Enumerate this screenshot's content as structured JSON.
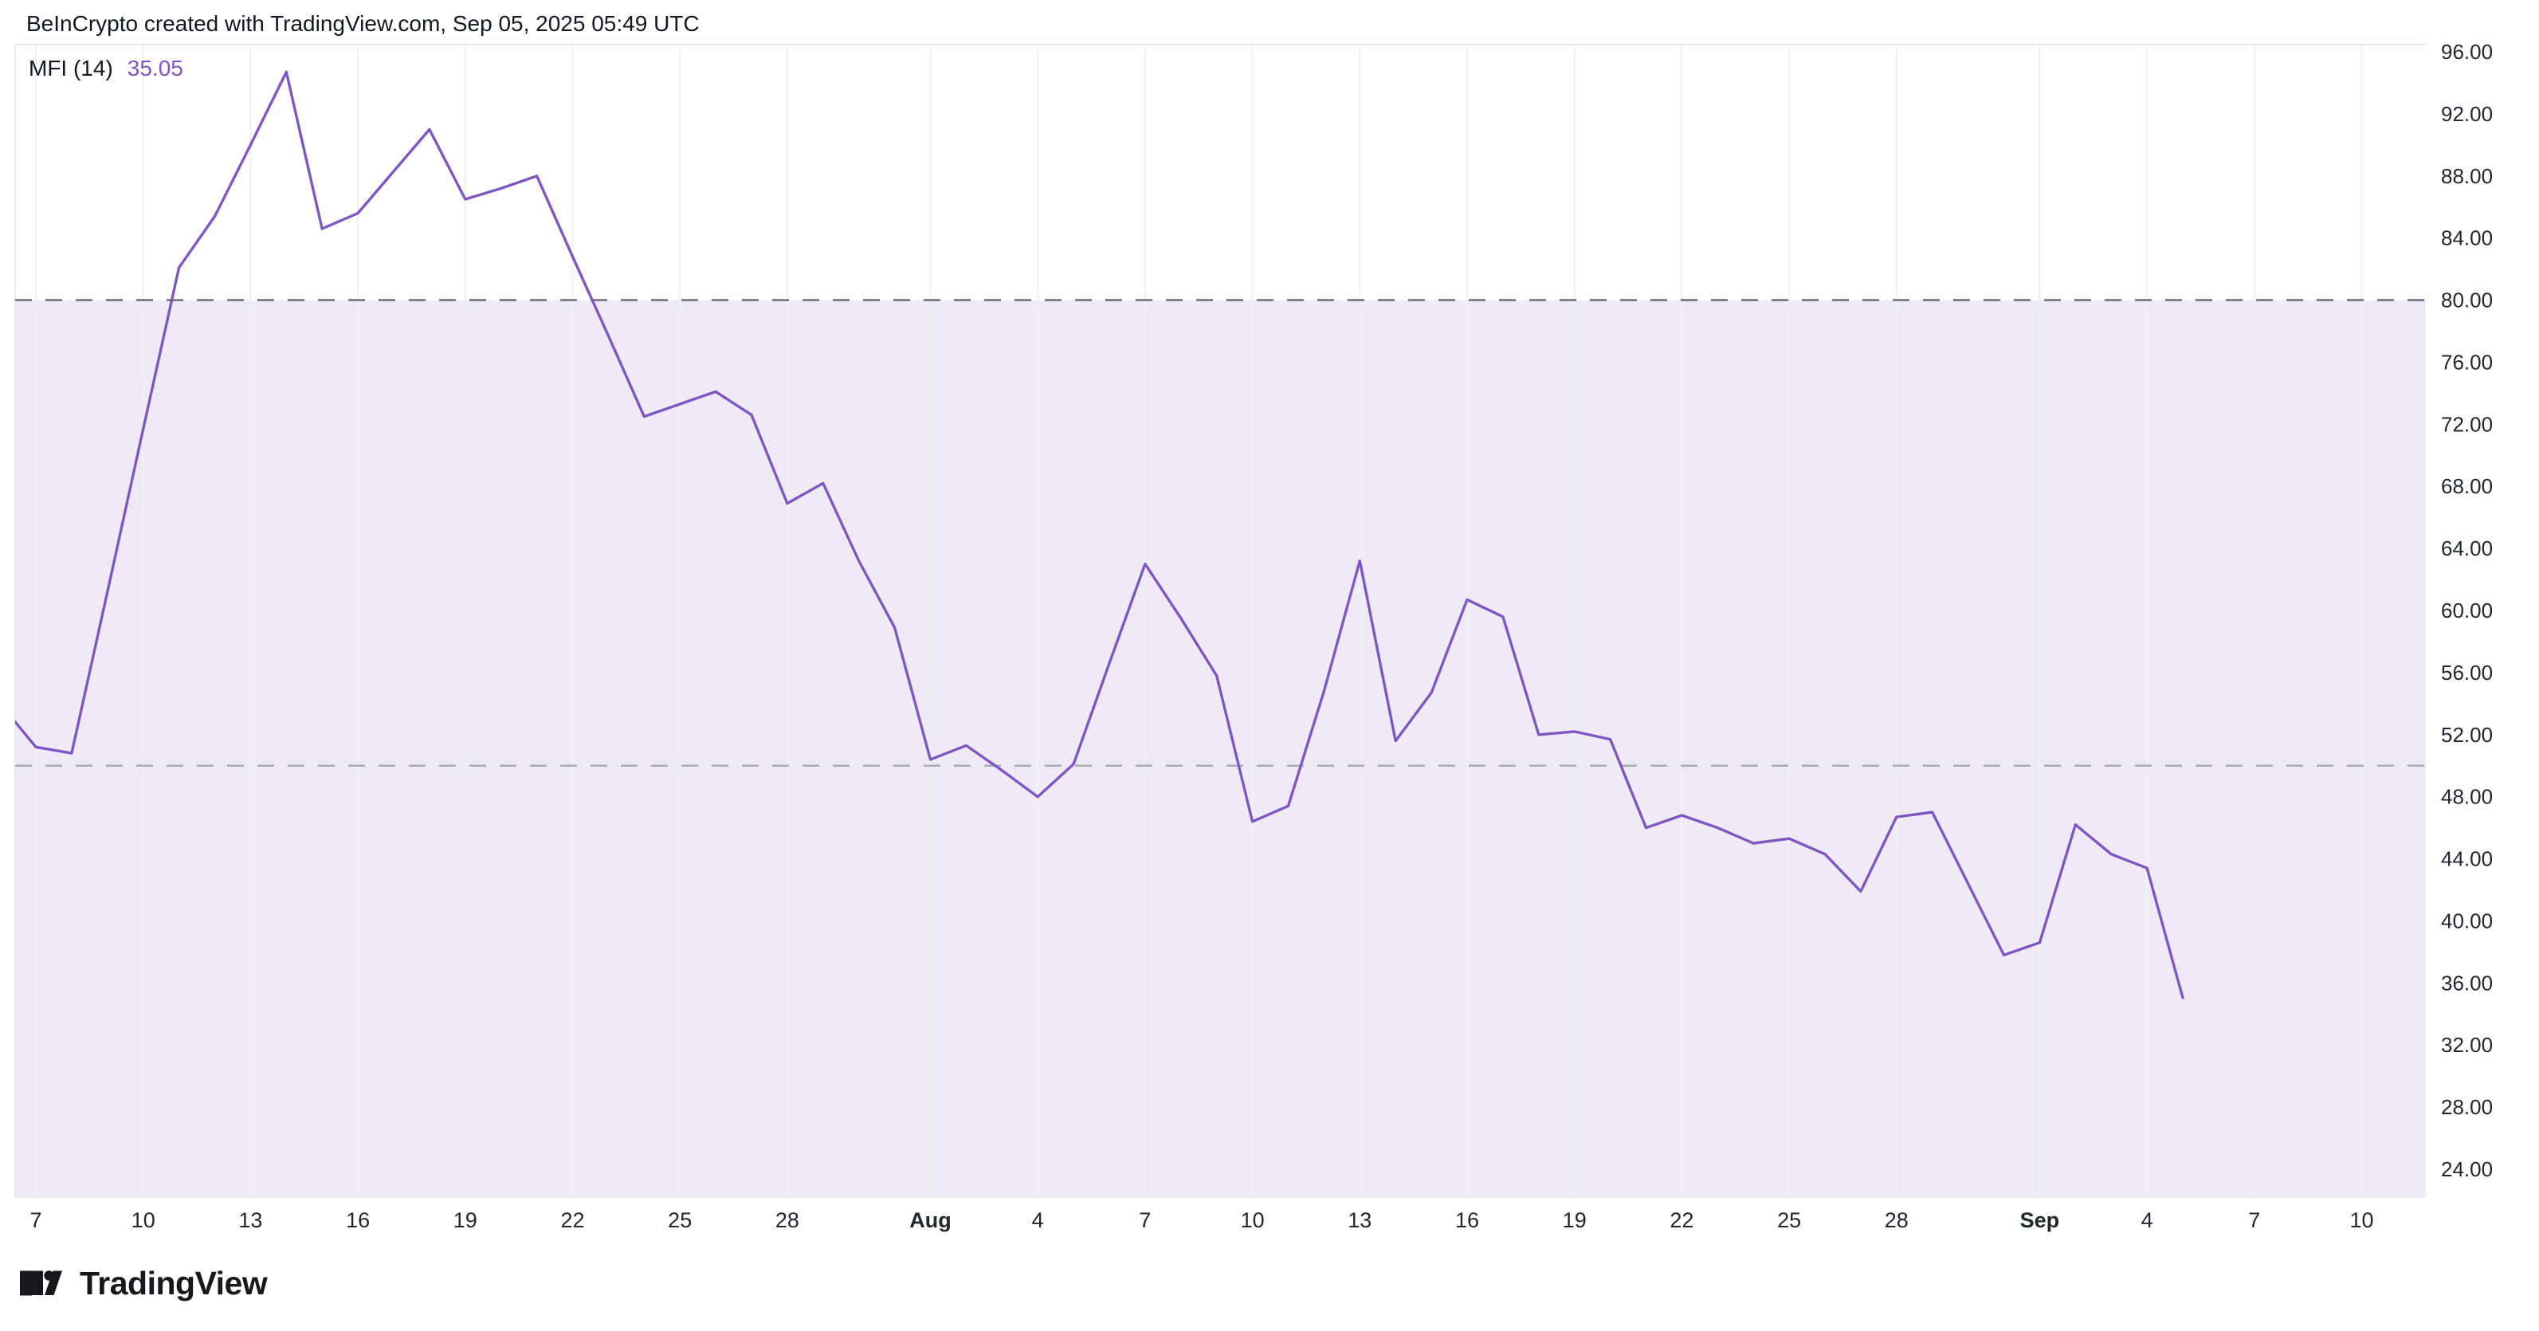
{
  "header": {
    "attribution": "BeInCrypto created with TradingView.com, Sep 05, 2025 05:49 UTC"
  },
  "indicator": {
    "name": "MFI (14)",
    "value": "35.05"
  },
  "footer": {
    "logo_text": "TradingView"
  },
  "chart_data": {
    "type": "line",
    "title": "MFI (14)",
    "series_name": "MFI",
    "line_color": "#7e57c2",
    "band_fill_color": "#eeebf7",
    "grid_color": "#eef0f5",
    "border_color": "#e8eaef",
    "axis_text_color": "#22262f",
    "legend_position": "top-left",
    "grid": "vertical-only",
    "ylim": [
      22.2,
      96.5
    ],
    "levels": [
      {
        "value": 80,
        "style": "dashed",
        "color": "#6b6e79",
        "role": "overbought"
      },
      {
        "value": 50,
        "style": "dashed",
        "color": "#a8abb5",
        "role": "midline"
      }
    ],
    "band": {
      "from": 80,
      "to": 22.2,
      "note": "shaded zone below overbought level"
    },
    "y_ticks": [
      "96.00",
      "92.00",
      "88.00",
      "84.00",
      "80.00",
      "76.00",
      "72.00",
      "68.00",
      "64.00",
      "60.00",
      "56.00",
      "52.00",
      "48.00",
      "44.00",
      "40.00",
      "36.00",
      "32.00",
      "28.00",
      "24.00"
    ],
    "y_tick_values": [
      96,
      92,
      88,
      84,
      80,
      76,
      72,
      68,
      64,
      60,
      56,
      52,
      48,
      44,
      40,
      36,
      32,
      28,
      24
    ],
    "x_ticks": [
      {
        "label": "7",
        "day": 1,
        "bold": false
      },
      {
        "label": "10",
        "day": 4,
        "bold": false
      },
      {
        "label": "13",
        "day": 7,
        "bold": false
      },
      {
        "label": "16",
        "day": 10,
        "bold": false
      },
      {
        "label": "19",
        "day": 13,
        "bold": false
      },
      {
        "label": "22",
        "day": 16,
        "bold": false
      },
      {
        "label": "25",
        "day": 19,
        "bold": false
      },
      {
        "label": "28",
        "day": 22,
        "bold": false
      },
      {
        "label": "Aug",
        "day": 26,
        "bold": true
      },
      {
        "label": "4",
        "day": 29,
        "bold": false
      },
      {
        "label": "7",
        "day": 32,
        "bold": false
      },
      {
        "label": "10",
        "day": 35,
        "bold": false
      },
      {
        "label": "13",
        "day": 38,
        "bold": false
      },
      {
        "label": "16",
        "day": 41,
        "bold": false
      },
      {
        "label": "19",
        "day": 44,
        "bold": false
      },
      {
        "label": "22",
        "day": 47,
        "bold": false
      },
      {
        "label": "25",
        "day": 50,
        "bold": false
      },
      {
        "label": "28",
        "day": 53,
        "bold": false
      },
      {
        "label": "Sep",
        "day": 57,
        "bold": true
      },
      {
        "label": "4",
        "day": 60,
        "bold": false
      },
      {
        "label": "7",
        "day": 63,
        "bold": false
      },
      {
        "label": "10",
        "day": 66,
        "bold": false
      }
    ],
    "x": [
      "Jul 6",
      "Jul 7",
      "Jul 8",
      "Jul 9",
      "Jul 10",
      "Jul 11",
      "Jul 12",
      "Jul 13",
      "Jul 14",
      "Jul 15",
      "Jul 16",
      "Jul 17",
      "Jul 18",
      "Jul 19",
      "Jul 20",
      "Jul 21",
      "Jul 22",
      "Jul 23",
      "Jul 24",
      "Jul 25",
      "Jul 26",
      "Jul 27",
      "Jul 28",
      "Jul 29",
      "Jul 30",
      "Jul 31",
      "Aug 1",
      "Aug 2",
      "Aug 3",
      "Aug 4",
      "Aug 5",
      "Aug 6",
      "Aug 7",
      "Aug 8",
      "Aug 9",
      "Aug 10",
      "Aug 11",
      "Aug 12",
      "Aug 13",
      "Aug 14",
      "Aug 15",
      "Aug 16",
      "Aug 17",
      "Aug 18",
      "Aug 19",
      "Aug 20",
      "Aug 21",
      "Aug 22",
      "Aug 23",
      "Aug 24",
      "Aug 25",
      "Aug 26",
      "Aug 27",
      "Aug 28",
      "Aug 29",
      "Aug 30",
      "Aug 31",
      "Sep 1",
      "Sep 2",
      "Sep 3",
      "Sep 4",
      "Sep 5"
    ],
    "values": [
      54.0,
      51.2,
      50.8,
      61.2,
      71.7,
      82.1,
      85.4,
      90.0,
      94.7,
      84.6,
      85.6,
      88.3,
      91.0,
      86.5,
      87.2,
      88.0,
      82.8,
      77.7,
      72.5,
      73.3,
      74.1,
      72.6,
      66.9,
      68.2,
      63.2,
      58.9,
      50.4,
      51.3,
      49.7,
      48.0,
      50.1,
      56.6,
      63.0,
      59.5,
      55.8,
      46.4,
      47.4,
      54.8,
      63.2,
      51.6,
      54.7,
      60.7,
      59.6,
      52.0,
      52.2,
      51.7,
      46.0,
      46.8,
      46.0,
      45.0,
      45.3,
      44.3,
      41.9,
      46.7,
      47.0,
      42.4,
      37.8,
      38.6,
      46.2,
      44.3,
      43.4,
      35.05
    ]
  }
}
